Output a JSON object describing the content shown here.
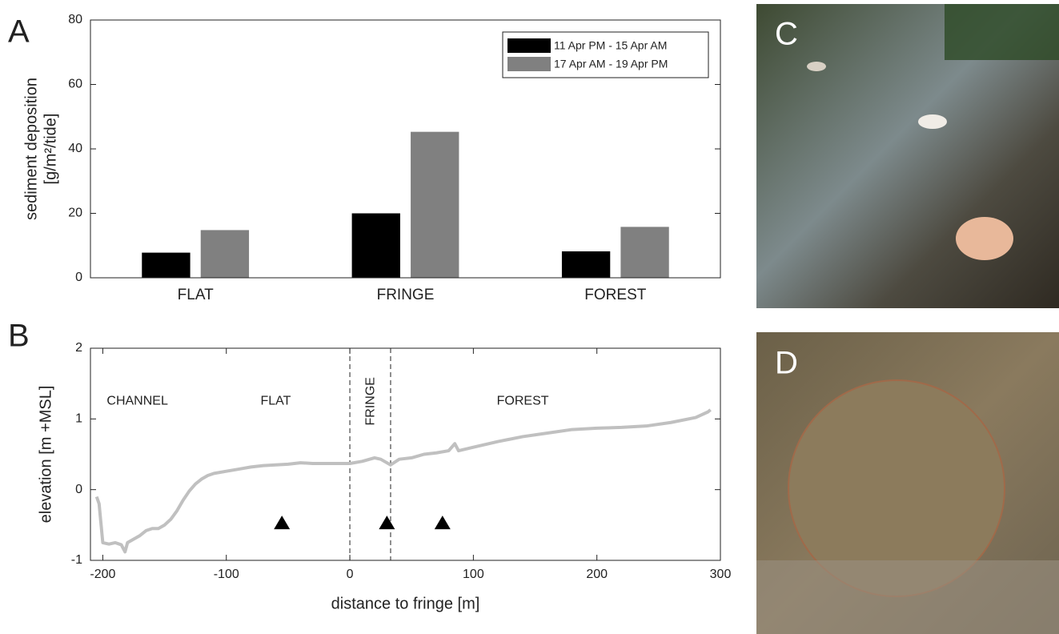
{
  "chart_data": [
    {
      "type": "bar",
      "panel_label": "A",
      "y_label": [
        "sediment deposition",
        "[g/m²/tide]"
      ],
      "categories": [
        "FLAT",
        "FRINGE",
        "FOREST"
      ],
      "series": [
        {
          "name": "11 Apr PM - 15 Apr AM",
          "color": "#000000",
          "values": [
            7.8,
            20.0,
            8.2
          ]
        },
        {
          "name": "17 Apr AM - 19 Apr PM",
          "color": "#808080",
          "values": [
            14.8,
            45.3,
            15.8
          ]
        }
      ],
      "ylim": [
        0,
        80
      ],
      "yticks": [
        0,
        20,
        40,
        60,
        80
      ],
      "legend": "upper right"
    },
    {
      "type": "line",
      "panel_label": "B",
      "y_label": "elevation [m +MSL]",
      "x_label": "distance to fringe [m]",
      "x": [
        -205,
        -203,
        -200,
        -195,
        -190,
        -185,
        -182,
        -180,
        -175,
        -170,
        -165,
        -160,
        -155,
        -150,
        -145,
        -140,
        -135,
        -130,
        -125,
        -120,
        -115,
        -110,
        -100,
        -90,
        -80,
        -70,
        -60,
        -50,
        -40,
        -30,
        -20,
        -10,
        0,
        10,
        20,
        25,
        33,
        40,
        50,
        60,
        70,
        80,
        85,
        88,
        100,
        120,
        140,
        160,
        180,
        200,
        220,
        240,
        260,
        280,
        290,
        292
      ],
      "series": [
        {
          "color": "#c0c0c0",
          "values": [
            -0.1,
            -0.2,
            -0.75,
            -0.77,
            -0.75,
            -0.78,
            -0.88,
            -0.75,
            -0.7,
            -0.65,
            -0.58,
            -0.55,
            -0.55,
            -0.5,
            -0.42,
            -0.3,
            -0.15,
            -0.02,
            0.08,
            0.15,
            0.2,
            0.23,
            0.26,
            0.29,
            0.32,
            0.34,
            0.35,
            0.36,
            0.38,
            0.37,
            0.37,
            0.37,
            0.37,
            0.4,
            0.45,
            0.43,
            0.35,
            0.43,
            0.45,
            0.5,
            0.52,
            0.55,
            0.65,
            0.55,
            0.6,
            0.68,
            0.75,
            0.8,
            0.85,
            0.87,
            0.88,
            0.9,
            0.95,
            1.02,
            1.1,
            1.13
          ]
        }
      ],
      "markers": {
        "x": [
          -55,
          30,
          75
        ],
        "y": [
          -0.47,
          -0.47,
          -0.47
        ],
        "color": "#000000"
      },
      "vlines": [
        0,
        33
      ],
      "annotations": [
        "CHANNEL",
        "FLAT",
        "FRINGE",
        "FOREST"
      ],
      "xlim": [
        -210,
        300
      ],
      "xticks": [
        -200,
        -100,
        0,
        100,
        200,
        300
      ],
      "ylim": [
        -1,
        2
      ],
      "yticks": [
        -1,
        0,
        1,
        2
      ]
    }
  ],
  "photos": [
    {
      "label": "C"
    },
    {
      "label": "D"
    }
  ]
}
